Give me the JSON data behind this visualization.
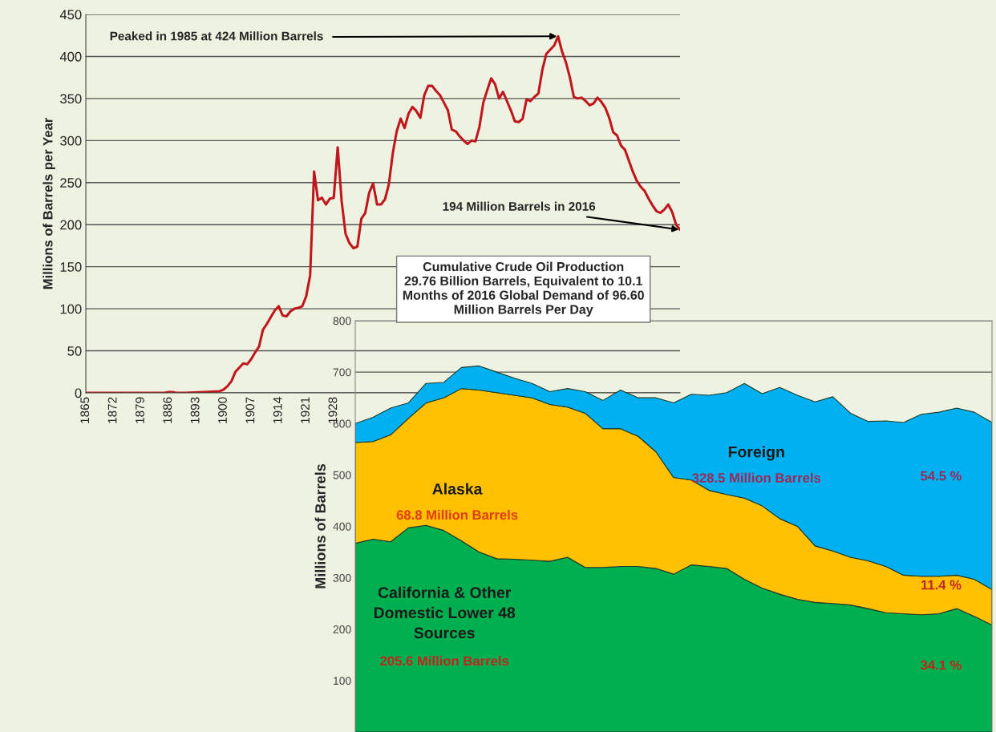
{
  "chart_data": [
    {
      "type": "line",
      "ylabel": "Millions of Barrels per Year",
      "x": [
        1865,
        1870,
        1875,
        1880,
        1885,
        1886,
        1887,
        1888,
        1890,
        1895,
        1899,
        1900,
        1901,
        1902,
        1903,
        1904,
        1905,
        1906,
        1907,
        1908,
        1909,
        1910,
        1911,
        1912,
        1913,
        1914,
        1915,
        1916,
        1917,
        1918,
        1919,
        1920,
        1921,
        1922,
        1923,
        1924,
        1925,
        1926,
        1927,
        1928,
        1929,
        1930,
        1931,
        1932,
        1933,
        1934,
        1935,
        1936,
        1937,
        1938,
        1939,
        1940,
        1941,
        1942,
        1943,
        1944,
        1945,
        1946,
        1947,
        1948,
        1949,
        1950,
        1951,
        1952,
        1953,
        1954,
        1955,
        1956,
        1957,
        1958,
        1959,
        1960,
        1961,
        1962,
        1963,
        1964,
        1965,
        1966,
        1967,
        1968,
        1969,
        1970,
        1971,
        1972,
        1973,
        1974,
        1975,
        1976,
        1977,
        1978,
        1979,
        1980,
        1981,
        1982,
        1983,
        1984,
        1985,
        1986,
        1987,
        1988,
        1989,
        1990,
        1991,
        1992,
        1993,
        1994,
        1995,
        1996,
        1997,
        1998,
        1999,
        2000,
        2001,
        2002,
        2003,
        2004,
        2005,
        2006,
        2007,
        2008,
        2009,
        2010,
        2011,
        2012,
        2013,
        2014,
        2015,
        2016
      ],
      "series": [
        {
          "color": "#c0161e",
          "values": [
            0,
            0,
            0,
            0,
            0,
            1,
            1,
            0,
            0,
            1,
            2,
            4,
            8,
            14,
            25,
            30,
            35,
            34,
            40,
            48,
            55,
            75,
            82,
            90,
            98,
            103,
            92,
            91,
            97,
            100,
            101,
            103,
            115,
            140,
            263,
            229,
            232,
            224,
            231,
            232,
            292,
            228,
            189,
            178,
            172,
            174,
            207,
            214,
            238,
            249,
            224,
            224,
            230,
            248,
            285,
            311,
            326,
            315,
            332,
            340,
            335,
            327,
            354,
            365,
            365,
            359,
            354,
            345,
            336,
            313,
            311,
            305,
            300,
            296,
            300,
            299,
            316,
            345,
            360,
            374,
            367,
            350,
            358,
            347,
            336,
            323,
            322,
            326,
            349,
            347,
            352,
            356,
            384,
            403,
            408,
            413,
            424,
            406,
            393,
            375,
            352,
            350,
            351,
            347,
            342,
            344,
            351,
            346,
            339,
            327,
            310,
            306,
            294,
            289,
            276,
            263,
            252,
            245,
            240,
            231,
            223,
            216,
            214,
            218,
            224,
            215,
            200,
            194
          ]
        }
      ],
      "xlim": [
        1865,
        2016
      ],
      "xticks": [
        1865,
        1872,
        1879,
        1886,
        1893,
        1900,
        1907,
        1914,
        1921,
        1928
      ],
      "ylim": [
        0,
        450
      ],
      "yticks": [
        0,
        50,
        100,
        150,
        200,
        250,
        300,
        350,
        400,
        450
      ],
      "grid": "y",
      "legend": false,
      "marker": "none",
      "line_style": "solid",
      "annotations": [
        {
          "text": "Peaked in 1985 at 424 Million Barrels",
          "x": 1985,
          "y": 424
        },
        {
          "text": "194 Million Barrels in 2016",
          "x": 2016,
          "y": 194
        },
        "Cumulative Crude Oil Production\n29.76 Billion Barrels, Equivalent to 10.1\nMonths of 2016 Global Demand of 96.60\nMillion Barrels Per Day"
      ]
    },
    {
      "type": "area",
      "stacked": true,
      "ylabel": "Millions of Barrels",
      "categories": [
        null,
        null,
        null,
        null,
        null,
        null,
        null,
        null,
        null,
        null,
        null,
        null,
        null,
        null,
        null,
        null,
        null,
        null,
        null,
        null,
        null,
        null,
        null,
        null,
        null,
        null,
        null,
        null,
        null,
        null,
        null,
        null,
        null,
        null,
        null,
        null,
        null
      ],
      "series": [
        {
          "name": "California & Other\nDomestic Lower 48\nSources",
          "color": "#00b050",
          "values": [
            367,
            375,
            370,
            397,
            402,
            392,
            372,
            350,
            337,
            336,
            334,
            332,
            340,
            320,
            320,
            322,
            322,
            318,
            307,
            325,
            322,
            318,
            297,
            280,
            268,
            258,
            252,
            250,
            247,
            240,
            232,
            230,
            228,
            230,
            240,
            225,
            208
          ]
        },
        {
          "name": "Alaska",
          "color": "#ffc000",
          "values": [
            196,
            190,
            208,
            213,
            238,
            258,
            296,
            315,
            323,
            319,
            316,
            305,
            292,
            300,
            270,
            268,
            253,
            227,
            188,
            165,
            148,
            144,
            158,
            160,
            147,
            142,
            110,
            102,
            93,
            93,
            90,
            75,
            75,
            73,
            65,
            72,
            69
          ]
        },
        {
          "name": "Foreign",
          "color": "#00b0f0",
          "values": [
            37,
            47,
            52,
            30,
            38,
            30,
            41,
            47,
            40,
            33,
            28,
            25,
            36,
            42,
            55,
            75,
            75,
            105,
            145,
            167,
            185,
            198,
            223,
            218,
            255,
            255,
            280,
            300,
            280,
            271,
            283,
            297,
            315,
            319,
            325,
            325,
            325
          ]
        }
      ],
      "ylim": [
        0,
        800
      ],
      "yticks": [
        100,
        200,
        300,
        400,
        500,
        600,
        700,
        800
      ],
      "tick_labels": "y",
      "grid": "y",
      "legend": false,
      "annotations": [
        "205.6 Million Barrels",
        "68.8 Million Barrels",
        "328.5 Million Barrels",
        "34.1 %",
        "11.4 %",
        "54.5 %"
      ]
    }
  ]
}
